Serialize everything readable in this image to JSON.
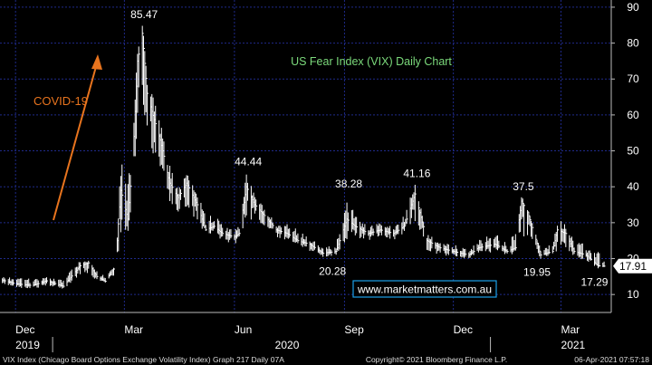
{
  "chart_data": {
    "type": "bar",
    "subtype": "ohlc-daily",
    "title": "US Fear Index (VIX) Daily Chart",
    "annotation": "COVID-19",
    "watermark": "www.marketmatters.com.au",
    "last_value_label": "17.91",
    "last_value": 17.91,
    "ylim": [
      5,
      92
    ],
    "yticks": [
      "90",
      "80",
      "70",
      "60",
      "50",
      "40",
      "30",
      "20",
      "10"
    ],
    "ytick_values": [
      90,
      80,
      70,
      60,
      50,
      40,
      30,
      20,
      10
    ],
    "x_months": [
      "Dec",
      "Mar",
      "Jun",
      "Sep",
      "Dec",
      "Mar"
    ],
    "x_years": [
      "2019",
      "2020",
      "2021"
    ],
    "peaks": [
      {
        "label": "85.47",
        "date": "2020-03-16",
        "value": 85.47
      },
      {
        "label": "44.44",
        "date": "2020-06-11",
        "value": 44.44
      },
      {
        "label": "38.28",
        "date": "2020-09-03",
        "value": 38.28
      },
      {
        "label": "41.16",
        "date": "2020-10-30",
        "value": 41.16
      },
      {
        "label": "37.5",
        "date": "2021-01-27",
        "value": 37.5
      }
    ],
    "troughs": [
      {
        "label": "20.28",
        "date": "2020-08-25",
        "value": 20.28
      },
      {
        "label": "19.95",
        "date": "2021-02-12",
        "value": 19.95
      },
      {
        "label": "17.29",
        "date": "2021-04-01",
        "value": 17.29
      }
    ],
    "series": [
      {
        "dates": [
          "2019-11-20",
          "2019-12-01",
          "2019-12-15",
          "2019-12-27",
          "2020-01-10",
          "2020-01-24",
          "2020-01-31",
          "2020-02-07",
          "2020-02-14",
          "2020-02-21",
          "2020-02-24",
          "2020-02-27",
          "2020-03-04",
          "2020-03-09",
          "2020-03-12",
          "2020-03-16",
          "2020-03-20",
          "2020-03-24",
          "2020-03-31",
          "2020-04-08",
          "2020-04-15",
          "2020-04-22",
          "2020-05-01",
          "2020-05-08",
          "2020-05-15",
          "2020-05-22",
          "2020-06-01",
          "2020-06-05",
          "2020-06-11",
          "2020-06-18",
          "2020-06-26",
          "2020-07-06",
          "2020-07-15",
          "2020-07-24",
          "2020-08-03",
          "2020-08-14",
          "2020-08-25",
          "2020-09-03",
          "2020-09-10",
          "2020-09-21",
          "2020-10-01",
          "2020-10-12",
          "2020-10-21",
          "2020-10-30",
          "2020-11-09",
          "2020-11-20",
          "2020-12-01",
          "2020-12-14",
          "2020-12-22",
          "2021-01-05",
          "2021-01-15",
          "2021-01-22",
          "2021-01-27",
          "2021-02-01",
          "2021-02-12",
          "2021-02-22",
          "2021-02-26",
          "2021-03-05",
          "2021-03-12",
          "2021-03-22",
          "2021-04-01",
          "2021-04-06"
        ],
        "close": [
          14,
          13,
          12.5,
          13.8,
          12.3,
          18,
          18.8,
          15,
          13.7,
          17.1,
          25,
          39,
          31,
          54,
          75,
          82.7,
          66,
          61,
          53,
          41,
          37,
          41,
          35,
          28,
          29,
          27,
          26,
          27,
          40,
          35,
          32,
          28,
          27,
          25,
          24,
          21.5,
          22,
          31,
          29,
          27,
          28,
          27,
          29,
          38,
          25,
          23,
          22,
          21,
          23,
          24,
          22,
          23,
          36,
          33,
          21,
          22,
          28,
          27,
          22,
          21,
          18,
          17.9
        ],
        "high": [
          15,
          15,
          14.5,
          15,
          14.5,
          19.5,
          19.5,
          17,
          15,
          18,
          27,
          49.5,
          42,
          62,
          77,
          85.47,
          72,
          66,
          58,
          46,
          40,
          44,
          39,
          32,
          32,
          30,
          28,
          30,
          44.44,
          38,
          34,
          30,
          30,
          28,
          26,
          23,
          24,
          38.28,
          32,
          29,
          30,
          29,
          32,
          41.16,
          27,
          25,
          24,
          23,
          25,
          28,
          24,
          28,
          37.5,
          34,
          23,
          24,
          31,
          30,
          25,
          24,
          22,
          20
        ],
        "low": [
          13,
          12,
          11.5,
          12.5,
          11.5,
          15,
          16,
          13.5,
          13.2,
          15,
          20,
          26,
          25,
          40,
          54,
          58,
          56,
          50,
          42,
          36,
          33,
          34,
          30,
          27,
          27,
          25,
          24,
          25,
          30,
          31,
          29,
          26,
          25,
          24,
          22,
          20.28,
          21,
          25,
          26,
          25,
          26,
          25,
          27,
          30,
          22,
          21,
          20.5,
          20,
          21,
          22,
          21,
          21,
          25,
          26,
          19.95,
          21,
          22,
          23,
          20,
          19.5,
          17.29,
          17.5
        ]
      }
    ]
  },
  "footer": {
    "left": "VIX Index (Chicago Board Options Exchange Volatility Index) Graph 217  Daily 07A",
    "center": "Copyright© 2021 Bloomberg Finance L.P.",
    "right": "06-Apr-2021 07:57:18"
  },
  "colors": {
    "background": "#000000",
    "grid": "#1f2a8a",
    "bars": "#ffffff",
    "title": "#7bd97b",
    "annotation": "#e8741e",
    "watermark_border": "#1aa0e8",
    "watermark_text": "#ffffff"
  }
}
